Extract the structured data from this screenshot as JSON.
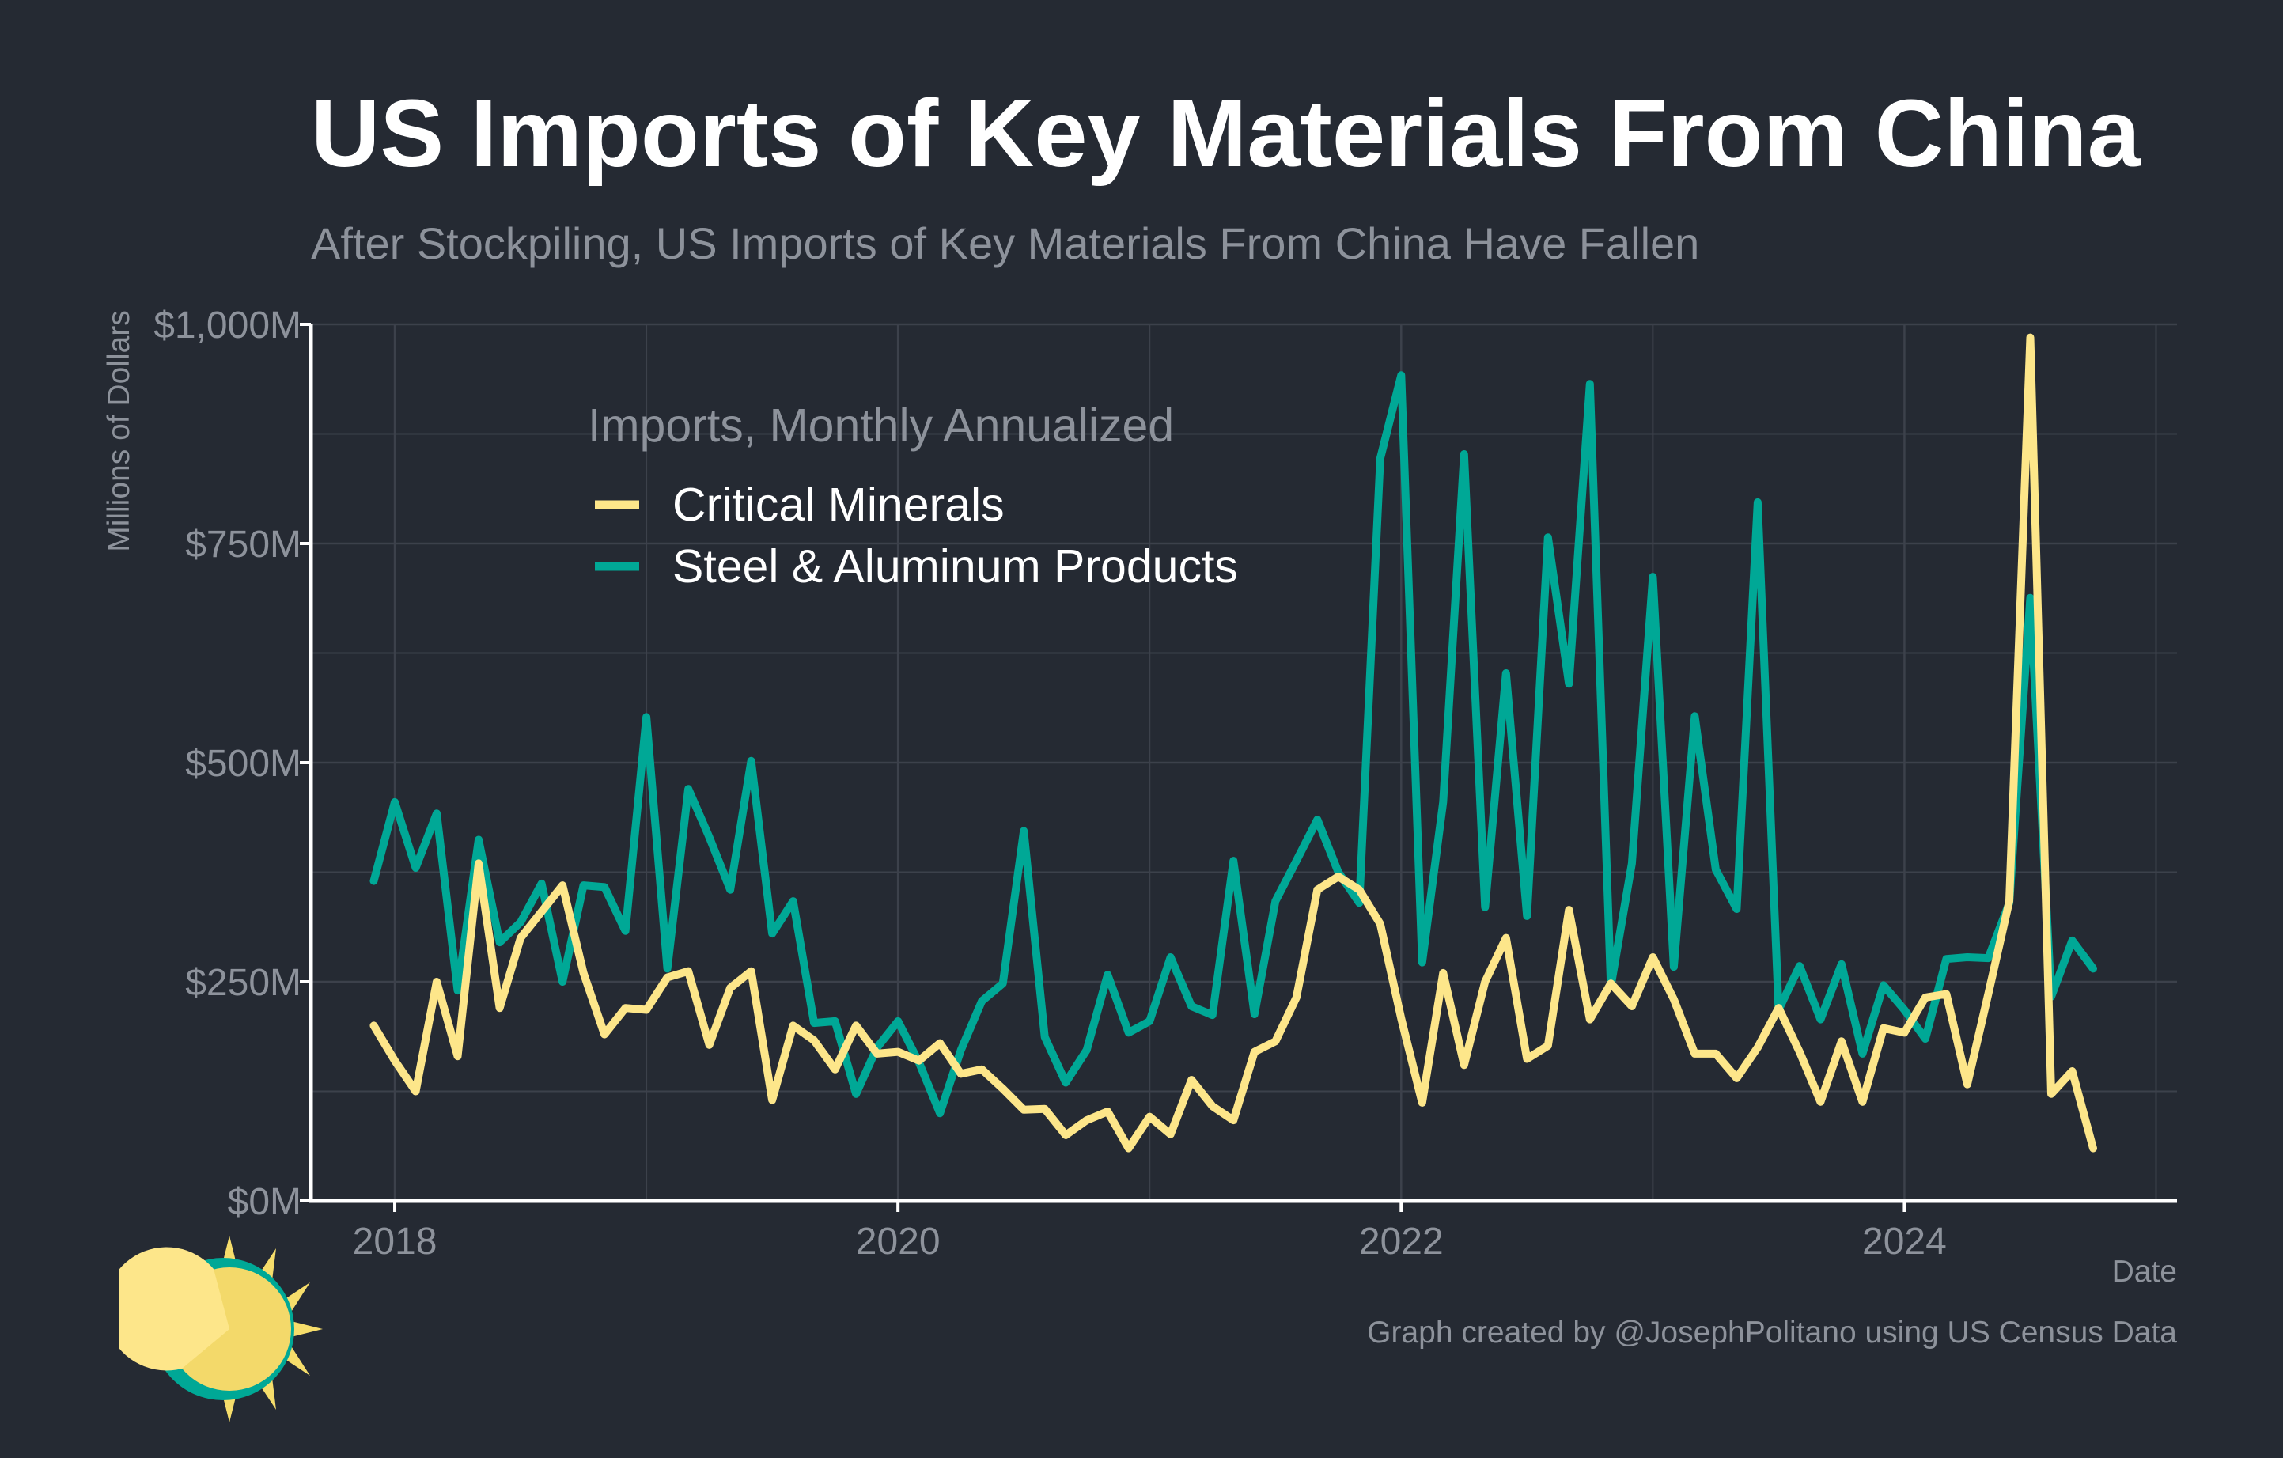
{
  "header": {
    "title": "US Imports of Key Materials From China",
    "subtitle": "After Stockpiling, US Imports of Key Materials From China Have Fallen"
  },
  "footer": {
    "caption": "Graph created by @JosephPolitano using US Census Data",
    "logo_icon": "sun-logo-icon"
  },
  "colors": {
    "background": "#252a33",
    "critical_minerals": "#fde68a",
    "steel_aluminum": "#00a896",
    "grid": "#3c414b",
    "axis": "#ffffff",
    "tick_text": "#8d929b"
  },
  "chart_data": {
    "type": "line",
    "xlabel": "Date",
    "ylabel": "Millions of Dollars",
    "ylim": [
      0,
      1000
    ],
    "xlim": [
      "2017-09",
      "2025-02"
    ],
    "yticks": [
      0,
      250,
      500,
      750,
      1000
    ],
    "ytick_labels": [
      "$0M",
      "$250M",
      "$500M",
      "$750M",
      "$1,000M"
    ],
    "xticks": [
      "2018-01",
      "2020-01",
      "2022-01",
      "2024-01"
    ],
    "xtick_labels": [
      "2018",
      "2020",
      "2022",
      "2024"
    ],
    "grid": true,
    "legend": {
      "title": "Imports, Monthly Annualized",
      "position": "top-left"
    },
    "x": [
      "2017-12",
      "2018-01",
      "2018-02",
      "2018-03",
      "2018-04",
      "2018-05",
      "2018-06",
      "2018-07",
      "2018-08",
      "2018-09",
      "2018-10",
      "2018-11",
      "2018-12",
      "2019-01",
      "2019-02",
      "2019-03",
      "2019-04",
      "2019-05",
      "2019-06",
      "2019-07",
      "2019-08",
      "2019-09",
      "2019-10",
      "2019-11",
      "2019-12",
      "2020-01",
      "2020-02",
      "2020-03",
      "2020-04",
      "2020-05",
      "2020-06",
      "2020-07",
      "2020-08",
      "2020-09",
      "2020-10",
      "2020-11",
      "2020-12",
      "2021-01",
      "2021-02",
      "2021-03",
      "2021-04",
      "2021-05",
      "2021-06",
      "2021-07",
      "2021-08",
      "2021-09",
      "2021-10",
      "2021-11",
      "2021-12",
      "2022-01",
      "2022-02",
      "2022-03",
      "2022-04",
      "2022-05",
      "2022-06",
      "2022-07",
      "2022-08",
      "2022-09",
      "2022-10",
      "2022-11",
      "2022-12",
      "2023-01",
      "2023-02",
      "2023-03",
      "2023-04",
      "2023-05",
      "2023-06",
      "2023-07",
      "2023-08",
      "2023-09",
      "2023-10",
      "2023-11",
      "2023-12",
      "2024-01",
      "2024-02",
      "2024-03",
      "2024-04",
      "2024-05",
      "2024-06",
      "2024-07",
      "2024-08",
      "2024-09",
      "2024-10"
    ],
    "series": [
      {
        "name": "Critical Minerals",
        "color": "#fde68a",
        "values": [
          200,
          160,
          125,
          250,
          165,
          385,
          220,
          300,
          330,
          360,
          260,
          190,
          220,
          218,
          255,
          262,
          178,
          243,
          262,
          115,
          200,
          183,
          150,
          200,
          168,
          170,
          160,
          180,
          145,
          150,
          128,
          104,
          105,
          75,
          92,
          102,
          60,
          96,
          76,
          138,
          108,
          92,
          170,
          182,
          232,
          355,
          370,
          355,
          316,
          208,
          112,
          260,
          155,
          250,
          300,
          162,
          177,
          332,
          207,
          248,
          222,
          278,
          230,
          168,
          168,
          140,
          175,
          220,
          170,
          113,
          182,
          113,
          197,
          192,
          232,
          236,
          133,
          236,
          342,
          985,
          122,
          148,
          60
        ]
      },
      {
        "name": "Steel & Aluminum Products",
        "color": "#00a896",
        "values": [
          365,
          455,
          380,
          442,
          240,
          412,
          295,
          318,
          362,
          250,
          360,
          358,
          308,
          552,
          265,
          470,
          415,
          355,
          502,
          305,
          342,
          203,
          205,
          122,
          175,
          205,
          158,
          100,
          172,
          228,
          248,
          422,
          187,
          135,
          172,
          258,
          192,
          205,
          278,
          222,
          212,
          388,
          213,
          342,
          388,
          435,
          375,
          340,
          847,
          942,
          272,
          455,
          852,
          335,
          602,
          325,
          757,
          590,
          932,
          245,
          385,
          712,
          267,
          553,
          378,
          333,
          797,
          218,
          268,
          207,
          270,
          168,
          246,
          218,
          185,
          276,
          278,
          277,
          340,
          688,
          233,
          297,
          265
        ]
      }
    ]
  }
}
